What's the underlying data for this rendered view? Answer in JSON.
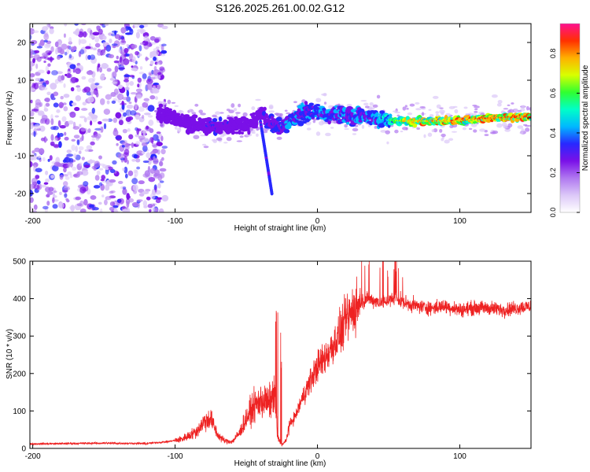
{
  "title": "S126.2025.261.00.02.G12",
  "colors": {
    "snr_line": "#ee2222",
    "axis": "#000000",
    "background": "#ffffff",
    "colormap": [
      "#ffffff",
      "#dcc8f8",
      "#b078f0",
      "#7a10e8",
      "#2828ff",
      "#00b8ff",
      "#00ffc8",
      "#30ff30",
      "#d8ff00",
      "#ffb000",
      "#ff3000",
      "#ff1090"
    ]
  },
  "chart_data": [
    {
      "type": "heatmap",
      "name": "spectrogram",
      "title": "S126.2025.261.00.02.G12",
      "xlabel": "Height of straight line (km)",
      "ylabel": "Frequency (Hz)",
      "xlim": [
        -202,
        150
      ],
      "ylim": [
        -25,
        25
      ],
      "xticks": [
        -200,
        -100,
        0,
        100
      ],
      "xtick_labels": [
        "-200",
        "-100",
        "0",
        "100"
      ],
      "yticks": [
        -20,
        -10,
        0,
        10,
        20
      ],
      "ytick_labels": [
        "-20",
        "-10",
        "0",
        "10",
        "20"
      ],
      "colorbar": {
        "label": "Normalized spectral amplitude",
        "range": [
          0,
          0.95
        ],
        "ticks": [
          0,
          0.2,
          0.4,
          0.6,
          0.8
        ],
        "tick_labels": [
          "0.0",
          "0.2",
          "0.4",
          "0.6",
          "0.8"
        ]
      },
      "frequency_trace": {
        "x_km": [
          -110,
          -100,
          -90,
          -80,
          -70,
          -60,
          -50,
          -45,
          -40,
          -35,
          -30,
          -25,
          -20,
          -15,
          -10,
          -5,
          0,
          5,
          10,
          20,
          30,
          40,
          50,
          60,
          80,
          100,
          120,
          150
        ],
        "freq_hz": [
          1,
          0,
          -1.5,
          -2,
          -2.5,
          -2,
          -2,
          -1,
          1.5,
          -1,
          -2,
          -2.5,
          -1,
          0.5,
          1.5,
          1.5,
          1.5,
          1,
          0.8,
          0.5,
          0.5,
          0,
          -0.5,
          -0.8,
          -0.8,
          -0.7,
          0,
          0.3
        ],
        "amplitude": [
          0.15,
          0.3,
          0.3,
          0.3,
          0.35,
          0.3,
          0.3,
          0.3,
          0.3,
          0.35,
          0.35,
          0.4,
          0.45,
          0.45,
          0.4,
          0.45,
          0.45,
          0.45,
          0.45,
          0.45,
          0.45,
          0.45,
          0.55,
          0.8,
          0.85,
          0.85,
          0.9,
          0.9
        ]
      }
    },
    {
      "type": "line",
      "name": "snr",
      "xlabel": "Height of straight line (km)",
      "ylabel": "SNR (10 * v/v)",
      "xlim": [
        -202,
        150
      ],
      "ylim": [
        0,
        500
      ],
      "xticks": [
        -200,
        -100,
        0,
        100
      ],
      "xtick_labels": [
        "-200",
        "-100",
        "0",
        "100"
      ],
      "yticks": [
        0,
        100,
        200,
        300,
        400,
        500
      ],
      "ytick_labels": [
        "0",
        "100",
        "200",
        "300",
        "400",
        "500"
      ],
      "series": [
        {
          "name": "SNR",
          "x": [
            -202,
            -150,
            -120,
            -105,
            -95,
            -85,
            -80,
            -75,
            -70,
            -65,
            -60,
            -55,
            -50,
            -45,
            -42,
            -38,
            -35,
            -30,
            -28,
            -25,
            -22,
            -20,
            -15,
            -10,
            -5,
            0,
            5,
            10,
            15,
            20,
            25,
            30,
            35,
            40,
            45,
            50,
            55,
            60,
            70,
            80,
            90,
            100,
            110,
            120,
            130,
            140,
            150
          ],
          "y": [
            12,
            14,
            13,
            18,
            25,
            45,
            70,
            80,
            35,
            20,
            18,
            40,
            80,
            110,
            120,
            130,
            120,
            140,
            30,
            10,
            20,
            60,
            90,
            140,
            180,
            220,
            240,
            270,
            300,
            340,
            370,
            390,
            400,
            395,
            390,
            395,
            400,
            390,
            380,
            375,
            380,
            370,
            375,
            375,
            370,
            375,
            380
          ]
        }
      ]
    }
  ]
}
